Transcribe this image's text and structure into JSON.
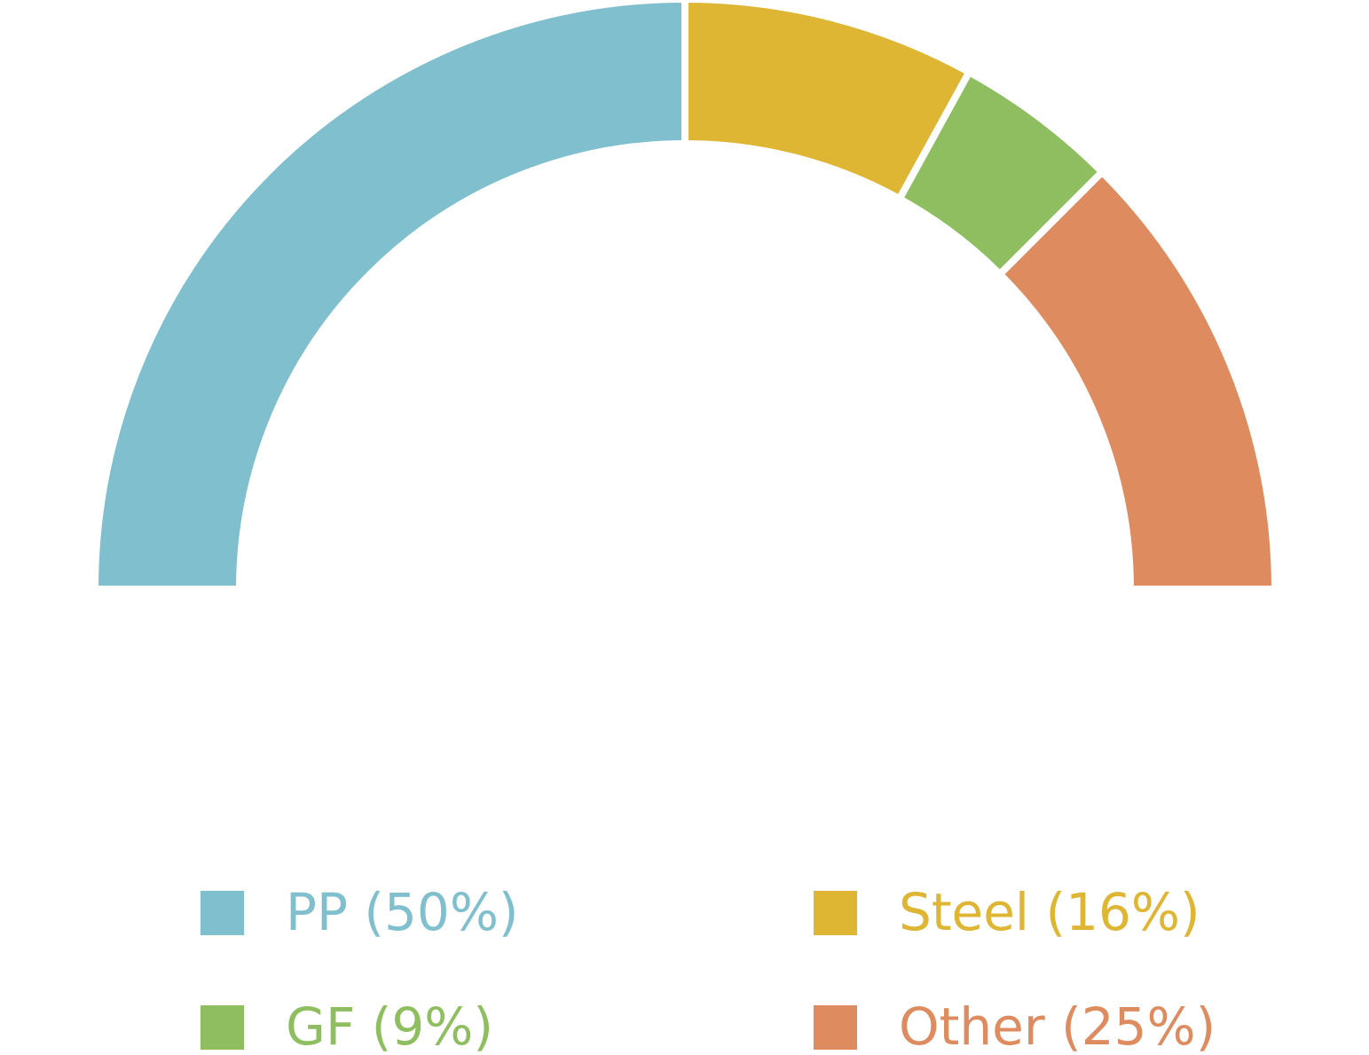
{
  "chart_data": {
    "type": "half-donut",
    "categories": [
      "PP (50%)",
      "Steel (16%)",
      "GF (9%)",
      "Other (25%)"
    ],
    "values": [
      50,
      16,
      9,
      25
    ],
    "colors": [
      "#80bfcd",
      "#dfb534",
      "#8ebe5f",
      "#de8c5f"
    ]
  }
}
